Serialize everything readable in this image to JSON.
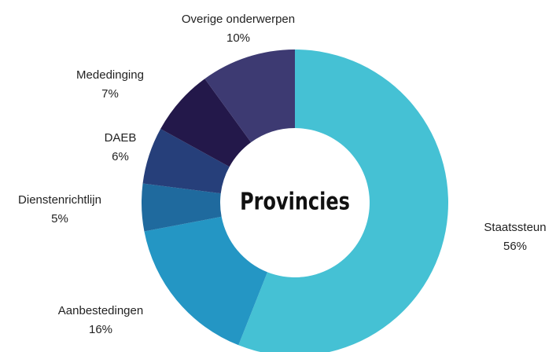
{
  "chart_data": {
    "type": "donut",
    "title": "Provincies",
    "categories": [
      "Staatssteun",
      "Aanbestedingen",
      "Dienstenrichtlijn",
      "DAEB",
      "Mededinging",
      "Overige onderwerpen"
    ],
    "values": [
      56,
      16,
      5,
      6,
      7,
      10
    ],
    "value_labels": [
      "56%",
      "16%",
      "5%",
      "6%",
      "7%",
      "10%"
    ],
    "colors": [
      "#45c1d4",
      "#2496c4",
      "#1f6a9e",
      "#263f7a",
      "#23184a",
      "#3d3a72"
    ]
  }
}
